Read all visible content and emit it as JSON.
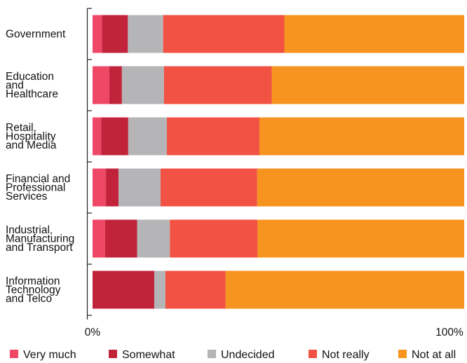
{
  "chart_data": {
    "type": "bar",
    "orientation": "horizontal",
    "stacked": true,
    "percent_stacked": true,
    "title": "",
    "xlabel": "",
    "ylabel": "",
    "xlim": [
      0,
      100
    ],
    "x_ticks": [
      "0%",
      "100%"
    ],
    "grid": false,
    "legend_position": "bottom",
    "categories": [
      [
        "Government"
      ],
      [
        "Education",
        "and",
        "Healthcare"
      ],
      [
        "Retail,",
        "Hospitality",
        "and Media"
      ],
      [
        "Financial and",
        "Professional",
        "Services"
      ],
      [
        "Industrial,",
        "Manufacturing",
        "and Transport"
      ],
      [
        "Information",
        "Technology",
        "and Telco"
      ]
    ],
    "series": [
      {
        "name": "Very much",
        "color": "#ee4866",
        "values": [
          2.5,
          4.5,
          2.3,
          3.6,
          3.4,
          0
        ]
      },
      {
        "name": "Somewhat",
        "color": "#c1243a",
        "values": [
          7.0,
          3.4,
          7.3,
          3.4,
          8.6,
          16.6
        ]
      },
      {
        "name": "Undecided",
        "color": "#b5b5b8",
        "values": [
          9.5,
          11.3,
          10.4,
          11.3,
          8.8,
          3.0
        ]
      },
      {
        "name": "Not really",
        "color": "#f15243",
        "values": [
          32.6,
          29.0,
          24.9,
          26.0,
          23.6,
          16.2
        ]
      },
      {
        "name": "Not at all",
        "color": "#f7931f",
        "values": [
          48.4,
          51.8,
          55.1,
          55.7,
          55.6,
          64.2
        ]
      }
    ]
  }
}
